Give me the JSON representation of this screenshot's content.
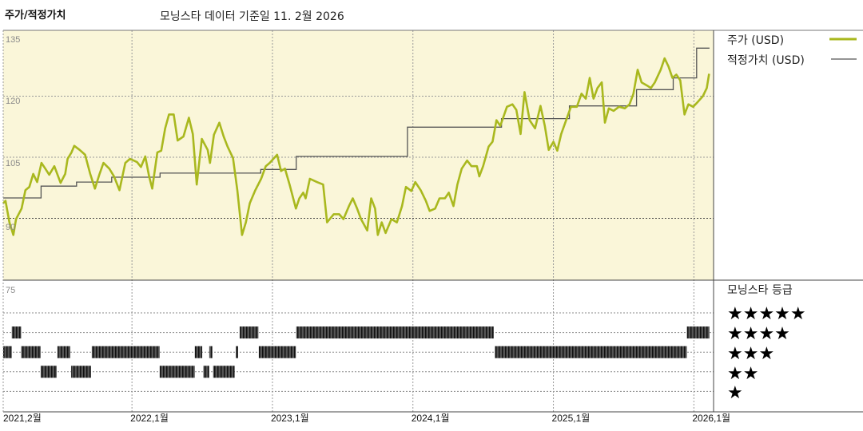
{
  "header": {
    "title": "주가/적정가치",
    "subtitle": "모닝스타 데이터 기준일 11. 2월 2026"
  },
  "colors": {
    "plot_background": "#faf6d9",
    "price": "#a9b81e",
    "fair_value": "#555555",
    "rating_bar": "#333333"
  },
  "chart_data": {
    "type": "line",
    "xlabel": "",
    "ylabel": "",
    "ylim": [
      75,
      135
    ],
    "grid": true,
    "legend_position": "right",
    "y_ticks": [
      "135",
      "120",
      "105",
      "90"
    ],
    "x_ticks": [
      {
        "date": "2021-02-01",
        "label": "2021,2월"
      },
      {
        "date": "2022-01-01",
        "label": "2022,1월"
      },
      {
        "date": "2023-01-01",
        "label": "2023,1월"
      },
      {
        "date": "2024-01-01",
        "label": "2024,1월"
      },
      {
        "date": "2025-01-01",
        "label": "2025,1월"
      },
      {
        "date": "2026-01-01",
        "label": "2026,1월"
      }
    ],
    "series": [
      {
        "name": "주가 (USD)",
        "kind": "line",
        "points": [
          [
            "2021-02-01",
            93.7
          ],
          [
            "2021-02-07",
            94.3
          ],
          [
            "2021-02-17",
            89.0
          ],
          [
            "2021-02-27",
            85.9
          ],
          [
            "2021-03-04",
            89.8
          ],
          [
            "2021-03-18",
            92.4
          ],
          [
            "2021-03-28",
            96.9
          ],
          [
            "2021-04-08",
            97.7
          ],
          [
            "2021-04-18",
            100.9
          ],
          [
            "2021-04-28",
            98.9
          ],
          [
            "2021-05-09",
            103.6
          ],
          [
            "2021-05-19",
            102.2
          ],
          [
            "2021-05-29",
            100.7
          ],
          [
            "2021-06-12",
            102.8
          ],
          [
            "2021-06-28",
            98.7
          ],
          [
            "2021-07-10",
            100.9
          ],
          [
            "2021-07-16",
            104.6
          ],
          [
            "2021-07-26",
            106.2
          ],
          [
            "2021-08-03",
            107.8
          ],
          [
            "2021-08-17",
            106.8
          ],
          [
            "2021-09-01",
            105.6
          ],
          [
            "2021-09-14",
            100.9
          ],
          [
            "2021-09-26",
            97.3
          ],
          [
            "2021-10-08",
            100.9
          ],
          [
            "2021-10-18",
            103.6
          ],
          [
            "2021-11-03",
            102.2
          ],
          [
            "2021-11-15",
            100.3
          ],
          [
            "2021-11-29",
            96.9
          ],
          [
            "2021-12-14",
            103.6
          ],
          [
            "2021-12-26",
            104.6
          ],
          [
            "2022-01-14",
            103.8
          ],
          [
            "2022-01-24",
            102.6
          ],
          [
            "2022-02-05",
            105.2
          ],
          [
            "2022-02-15",
            100.3
          ],
          [
            "2022-02-23",
            97.3
          ],
          [
            "2022-03-06",
            106.2
          ],
          [
            "2022-03-16",
            106.6
          ],
          [
            "2022-03-26",
            112.1
          ],
          [
            "2022-04-06",
            115.5
          ],
          [
            "2022-04-18",
            115.5
          ],
          [
            "2022-04-28",
            109.1
          ],
          [
            "2022-05-13",
            110.1
          ],
          [
            "2022-05-27",
            114.7
          ],
          [
            "2022-06-07",
            110.7
          ],
          [
            "2022-06-17",
            98.3
          ],
          [
            "2022-06-30",
            109.5
          ],
          [
            "2022-07-15",
            106.8
          ],
          [
            "2022-07-21",
            103.6
          ],
          [
            "2022-08-01",
            110.5
          ],
          [
            "2022-08-15",
            113.5
          ],
          [
            "2022-08-26",
            110.1
          ],
          [
            "2022-09-06",
            107.6
          ],
          [
            "2022-09-20",
            104.8
          ],
          [
            "2022-10-01",
            96.9
          ],
          [
            "2022-10-13",
            85.9
          ],
          [
            "2022-10-23",
            89.0
          ],
          [
            "2022-11-03",
            93.7
          ],
          [
            "2022-11-17",
            96.9
          ],
          [
            "2022-12-02",
            99.7
          ],
          [
            "2022-12-14",
            102.8
          ],
          [
            "2022-12-24",
            103.6
          ],
          [
            "2023-01-13",
            105.6
          ],
          [
            "2023-01-23",
            101.6
          ],
          [
            "2023-02-03",
            102.2
          ],
          [
            "2023-02-15",
            98.3
          ],
          [
            "2023-03-01",
            92.4
          ],
          [
            "2023-03-10",
            94.9
          ],
          [
            "2023-03-20",
            96.3
          ],
          [
            "2023-03-26",
            94.9
          ],
          [
            "2023-04-07",
            99.7
          ],
          [
            "2023-04-25",
            98.9
          ],
          [
            "2023-05-11",
            98.3
          ],
          [
            "2023-05-21",
            89.0
          ],
          [
            "2023-06-08",
            91.0
          ],
          [
            "2023-06-22",
            91.0
          ],
          [
            "2023-07-03",
            89.8
          ],
          [
            "2023-07-17",
            93.0
          ],
          [
            "2023-07-27",
            94.9
          ],
          [
            "2023-08-08",
            92.4
          ],
          [
            "2023-08-18",
            89.8
          ],
          [
            "2023-09-04",
            87.0
          ],
          [
            "2023-09-14",
            94.9
          ],
          [
            "2023-09-24",
            92.4
          ],
          [
            "2023-10-01",
            85.9
          ],
          [
            "2023-10-11",
            89.0
          ],
          [
            "2023-10-21",
            86.4
          ],
          [
            "2023-11-06",
            89.8
          ],
          [
            "2023-11-20",
            89.0
          ],
          [
            "2023-12-03",
            93.0
          ],
          [
            "2023-12-13",
            97.7
          ],
          [
            "2023-12-27",
            96.7
          ],
          [
            "2024-01-07",
            98.9
          ],
          [
            "2024-01-21",
            96.9
          ],
          [
            "2024-02-04",
            94.3
          ],
          [
            "2024-02-14",
            91.8
          ],
          [
            "2024-02-28",
            92.4
          ],
          [
            "2024-03-09",
            94.9
          ],
          [
            "2024-03-23",
            94.9
          ],
          [
            "2024-04-03",
            96.3
          ],
          [
            "2024-04-15",
            93.0
          ],
          [
            "2024-04-25",
            98.3
          ],
          [
            "2024-05-06",
            102.2
          ],
          [
            "2024-05-20",
            104.2
          ],
          [
            "2024-06-01",
            102.8
          ],
          [
            "2024-06-15",
            102.8
          ],
          [
            "2024-06-21",
            100.3
          ],
          [
            "2024-07-01",
            102.8
          ],
          [
            "2024-07-15",
            107.6
          ],
          [
            "2024-07-25",
            108.8
          ],
          [
            "2024-08-05",
            114.1
          ],
          [
            "2024-08-15",
            112.7
          ],
          [
            "2024-09-02",
            117.4
          ],
          [
            "2024-09-16",
            118.0
          ],
          [
            "2024-09-26",
            116.6
          ],
          [
            "2024-10-07",
            110.7
          ],
          [
            "2024-10-17",
            121.0
          ],
          [
            "2024-10-30",
            114.1
          ],
          [
            "2024-11-14",
            112.1
          ],
          [
            "2024-11-28",
            117.6
          ],
          [
            "2024-12-09",
            112.7
          ],
          [
            "2024-12-19",
            106.8
          ],
          [
            "2025-01-01",
            108.8
          ],
          [
            "2025-01-11",
            106.6
          ],
          [
            "2025-01-21",
            110.7
          ],
          [
            "2025-02-06",
            114.7
          ],
          [
            "2025-02-16",
            117.4
          ],
          [
            "2025-03-01",
            117.4
          ],
          [
            "2025-03-13",
            120.6
          ],
          [
            "2025-03-24",
            119.4
          ],
          [
            "2025-04-04",
            124.5
          ],
          [
            "2025-04-14",
            119.4
          ],
          [
            "2025-04-24",
            122.0
          ],
          [
            "2025-05-05",
            123.4
          ],
          [
            "2025-05-13",
            113.5
          ],
          [
            "2025-05-23",
            117.0
          ],
          [
            "2025-06-05",
            116.4
          ],
          [
            "2025-06-19",
            117.4
          ],
          [
            "2025-07-04",
            117.0
          ],
          [
            "2025-07-16",
            118.0
          ],
          [
            "2025-07-26",
            120.6
          ],
          [
            "2025-08-07",
            126.5
          ],
          [
            "2025-08-17",
            123.4
          ],
          [
            "2025-09-01",
            122.6
          ],
          [
            "2025-09-11",
            122.0
          ],
          [
            "2025-09-21",
            123.4
          ],
          [
            "2025-10-06",
            126.5
          ],
          [
            "2025-10-16",
            129.3
          ],
          [
            "2025-10-26",
            127.3
          ],
          [
            "2025-11-06",
            124.5
          ],
          [
            "2025-11-16",
            125.3
          ],
          [
            "2025-11-26",
            123.9
          ],
          [
            "2025-12-07",
            115.5
          ],
          [
            "2025-12-17",
            118.0
          ],
          [
            "2025-12-29",
            117.4
          ],
          [
            "2026-01-09",
            118.4
          ],
          [
            "2026-01-24",
            120.0
          ],
          [
            "2026-02-04",
            122.0
          ],
          [
            "2026-02-10",
            125.5
          ]
        ]
      },
      {
        "name": "적정가치 (USD)",
        "kind": "step",
        "end_date": "2026-02-11",
        "points": [
          [
            "2021-02-01",
            95.0
          ],
          [
            "2021-05-08",
            97.9
          ],
          [
            "2021-08-09",
            98.9
          ],
          [
            "2021-11-09",
            100.1
          ],
          [
            "2022-03-13",
            101.1
          ],
          [
            "2022-12-01",
            102.0
          ],
          [
            "2023-03-02",
            105.2
          ],
          [
            "2023-12-17",
            112.4
          ],
          [
            "2024-08-18",
            114.5
          ],
          [
            "2025-02-12",
            117.6
          ],
          [
            "2025-08-04",
            121.6
          ],
          [
            "2025-11-08",
            124.5
          ],
          [
            "2026-01-08",
            131.8
          ]
        ]
      }
    ],
    "rating_panel": {
      "title": "모닝스타 등급",
      "tick_label": "75",
      "levels": [
        {
          "stars": 5,
          "label": "★★★★★"
        },
        {
          "stars": 4,
          "label": "★★★★"
        },
        {
          "stars": 3,
          "label": "★★★"
        },
        {
          "stars": 2,
          "label": "★★"
        },
        {
          "stars": 1,
          "label": "★"
        }
      ],
      "segments": [
        {
          "stars": 3,
          "from": "2021-02-01",
          "to": "2021-02-23"
        },
        {
          "stars": 4,
          "from": "2021-02-23",
          "to": "2021-03-17"
        },
        {
          "stars": 3,
          "from": "2021-03-17",
          "to": "2021-05-07"
        },
        {
          "stars": 2,
          "from": "2021-05-07",
          "to": "2021-06-18"
        },
        {
          "stars": 3,
          "from": "2021-06-20",
          "to": "2021-07-23"
        },
        {
          "stars": 2,
          "from": "2021-07-25",
          "to": "2021-09-16"
        },
        {
          "stars": 3,
          "from": "2021-09-18",
          "to": "2022-03-12"
        },
        {
          "stars": 2,
          "from": "2022-03-12",
          "to": "2022-06-12"
        },
        {
          "stars": 3,
          "from": "2022-06-12",
          "to": "2022-07-01"
        },
        {
          "stars": 2,
          "from": "2022-07-04",
          "to": "2022-07-19"
        },
        {
          "stars": 3,
          "from": "2022-07-19",
          "to": "2022-07-27"
        },
        {
          "stars": 2,
          "from": "2022-07-29",
          "to": "2022-09-24"
        },
        {
          "stars": 3,
          "from": "2022-09-27",
          "to": "2022-10-03"
        },
        {
          "stars": 4,
          "from": "2022-10-07",
          "to": "2022-11-25"
        },
        {
          "stars": 3,
          "from": "2022-11-26",
          "to": "2023-03-01"
        },
        {
          "stars": 4,
          "from": "2023-03-02",
          "to": "2024-07-28"
        },
        {
          "stars": 3,
          "from": "2024-08-01",
          "to": "2025-12-13"
        },
        {
          "stars": 4,
          "from": "2025-12-13",
          "to": "2026-02-11"
        }
      ]
    }
  }
}
